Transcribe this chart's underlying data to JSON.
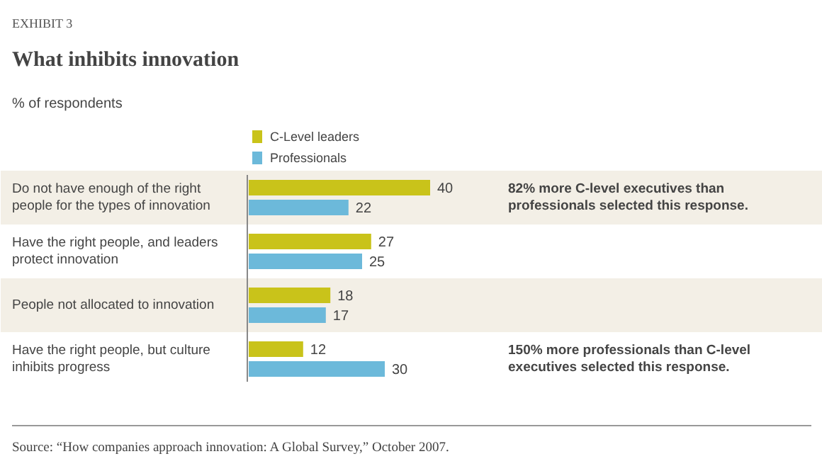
{
  "chart_data": {
    "type": "bar",
    "orientation": "horizontal",
    "title": "What inhibits innovation",
    "subtitle": "EXHIBIT 3",
    "xlabel": "% of respondents",
    "categories": [
      "Do not have enough of the right people for the types of innovation",
      "Have the right people, and leaders protect innovation",
      "People not allocated to innovation",
      "Have the right people, but culture inhibits progress"
    ],
    "series": [
      {
        "name": "C-Level leaders",
        "color": "#c9c31a",
        "values": [
          40,
          27,
          18,
          12
        ]
      },
      {
        "name": "Professionals",
        "color": "#6cb9da",
        "values": [
          22,
          25,
          17,
          30
        ]
      }
    ],
    "data_labels": true,
    "legend": "top",
    "grid": false,
    "annotations": [
      "82% more C-level executives than professionals selected this response.",
      "150% more professionals than C-level executives selected this response.",
      "Source: “How companies approach innovation: A Global Survey,” October 2007."
    ]
  }
}
